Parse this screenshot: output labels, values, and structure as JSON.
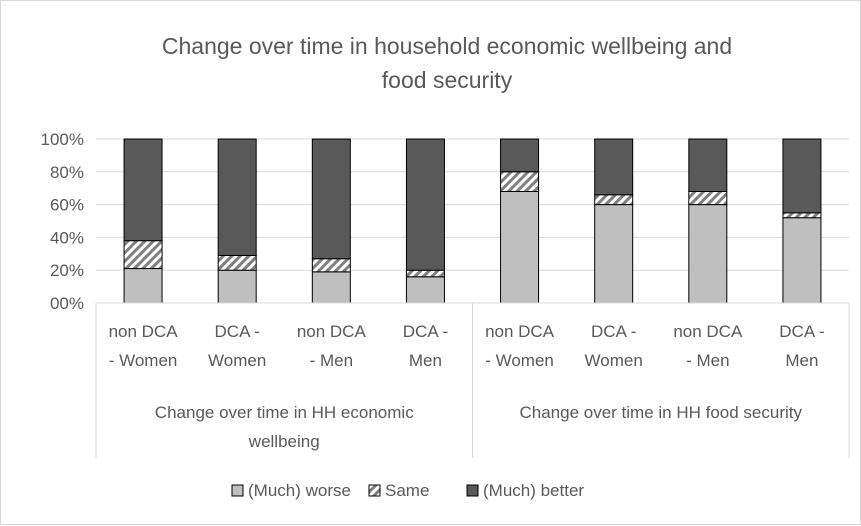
{
  "chart_data": {
    "type": "bar",
    "stacked": "percent",
    "title": "Change over time in household economic wellbeing and food security",
    "title_lines": [
      "Change over time in household economic wellbeing and",
      "food security"
    ],
    "ylim": [
      0,
      100
    ],
    "yticks": [
      "00%",
      "20%",
      "40%",
      "60%",
      "80%",
      "100%"
    ],
    "grid": true,
    "legend_position": "bottom",
    "groups": [
      {
        "label_lines": [
          "Change over time in HH  economic",
          "wellbeing"
        ],
        "categories": [
          {
            "lines": [
              "non DCA",
              "- Women"
            ]
          },
          {
            "lines": [
              "DCA -",
              "Women"
            ]
          },
          {
            "lines": [
              "non DCA",
              "- Men"
            ]
          },
          {
            "lines": [
              "DCA -",
              "Men"
            ]
          }
        ]
      },
      {
        "label_lines": [
          "Change over time in HH food security"
        ],
        "categories": [
          {
            "lines": [
              "non DCA",
              "- Women"
            ]
          },
          {
            "lines": [
              "DCA -",
              "Women"
            ]
          },
          {
            "lines": [
              "non DCA",
              "- Men"
            ]
          },
          {
            "lines": [
              "DCA -",
              "Men"
            ]
          }
        ]
      }
    ],
    "series": [
      {
        "name": "(Much) worse",
        "color": "#bfbfbf",
        "pattern": "solid",
        "values": [
          21,
          20,
          19,
          16,
          68,
          60,
          60,
          52
        ]
      },
      {
        "name": "Same",
        "color": "#7f7f7f",
        "pattern": "diagonal-hatch",
        "values": [
          17,
          9,
          8,
          4,
          12,
          6,
          8,
          3
        ]
      },
      {
        "name": "(Much) better",
        "color": "#595959",
        "pattern": "solid",
        "values": [
          62,
          71,
          73,
          80,
          20,
          34,
          32,
          45
        ]
      }
    ]
  }
}
